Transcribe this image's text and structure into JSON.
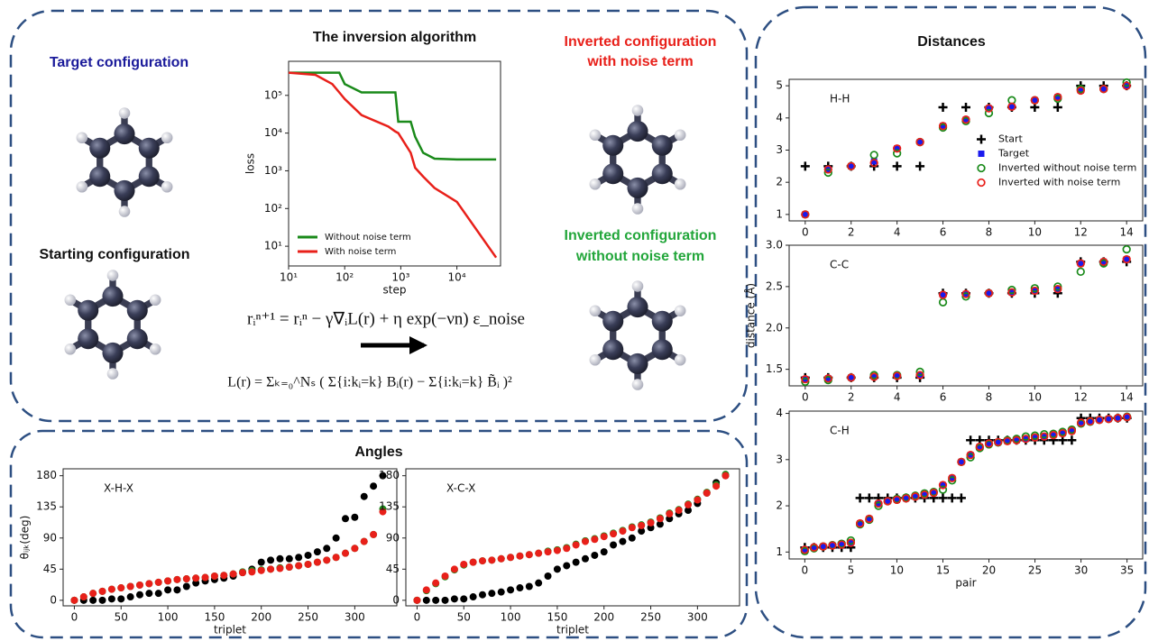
{
  "labels": {
    "target": "Target configuration",
    "starting": "Starting configuration",
    "inverted_noise": [
      "Inverted configuration",
      "with noise term"
    ],
    "inverted_no_noise": [
      "Inverted configuration",
      "without noise term"
    ],
    "equation_update": "rᵢⁿ⁺¹ = rᵢⁿ − γ∇ᵢL(r) + η exp(−νn) ε_noise",
    "equation_loss": "L(r) = Σₖ₌₀^Nₛ ( Σ{i:kᵢ=k} Bᵢ(r) − Σ{i:kᵢ=k} B̃ᵢ )²",
    "angles_title": "Angles",
    "distances_title": "Distances"
  },
  "chart_data": [
    {
      "type": "line",
      "title": "The inversion algorithm",
      "xlabel": "step",
      "ylabel": "loss",
      "xlog": true,
      "ylog": true,
      "x": [
        10,
        30,
        60,
        80,
        100,
        200,
        600,
        800,
        900,
        1500,
        1800,
        2500,
        4000,
        10000,
        50000
      ],
      "series": [
        {
          "name": "Without noise term",
          "color": "#1a8a1a",
          "values": [
            400000,
            400000,
            400000,
            400000,
            200000,
            120000,
            120000,
            120000,
            20000,
            20000,
            8000,
            3000,
            2100,
            2000,
            2000
          ]
        },
        {
          "name": "With noise term",
          "color": "#e8201a",
          "values": [
            400000,
            350000,
            200000,
            120000,
            80000,
            30000,
            15000,
            11000,
            10000,
            3000,
            1200,
            700,
            350,
            150,
            5
          ]
        }
      ],
      "xlim": [
        10,
        60000
      ],
      "ylim": [
        3,
        800000
      ],
      "xticks": [
        {
          "value": 10,
          "label": "10¹"
        },
        {
          "value": 100,
          "label": "10²"
        },
        {
          "value": 1000,
          "label": "10³"
        },
        {
          "value": 10000,
          "label": "10⁴"
        }
      ],
      "yticks": [
        {
          "value": 10,
          "label": "10¹"
        },
        {
          "value": 100,
          "label": "10²"
        },
        {
          "value": 1000,
          "label": "10³"
        },
        {
          "value": 10000,
          "label": "10⁴"
        },
        {
          "value": 100000,
          "label": "10⁵"
        }
      ],
      "legend": "lower left"
    },
    {
      "type": "scatter",
      "annotation": "X-H-X",
      "xlabel": "triplet",
      "ylabel": "θᵢⱼₖ(deg)",
      "x": [
        0,
        10,
        20,
        30,
        40,
        50,
        60,
        70,
        80,
        90,
        100,
        110,
        120,
        130,
        140,
        150,
        160,
        170,
        180,
        190,
        200,
        210,
        220,
        230,
        240,
        250,
        260,
        270,
        280,
        290,
        300,
        310,
        320,
        330
      ],
      "series": [
        {
          "color": "#000000",
          "marker": "dot",
          "values": [
            0,
            0,
            0,
            0,
            2,
            2,
            5,
            8,
            10,
            10,
            15,
            15,
            20,
            25,
            28,
            30,
            32,
            35,
            40,
            45,
            55,
            58,
            60,
            60,
            62,
            65,
            70,
            75,
            90,
            118,
            120,
            150,
            165,
            180
          ]
        },
        {
          "color": "#1a8a1a",
          "marker": "dot",
          "values": [
            0,
            5,
            10,
            13,
            16,
            18,
            20,
            22,
            24,
            26,
            28,
            30,
            31,
            32,
            33,
            35,
            36,
            38,
            41,
            43,
            44,
            45,
            47,
            48,
            50,
            52,
            55,
            58,
            62,
            68,
            75,
            85,
            95,
            132
          ]
        },
        {
          "color": "#e8201a",
          "marker": "dot",
          "values": [
            0,
            5,
            10,
            13,
            16,
            18,
            20,
            22,
            24,
            26,
            28,
            30,
            31,
            32,
            33,
            35,
            36,
            38,
            40,
            41,
            43,
            45,
            46,
            48,
            50,
            52,
            55,
            58,
            62,
            68,
            75,
            85,
            95,
            128
          ]
        }
      ],
      "xlim": [
        -12,
        345
      ],
      "ylim": [
        -8,
        190
      ],
      "xticks": [
        0,
        50,
        100,
        150,
        200,
        250,
        300
      ],
      "yticks": [
        0,
        45,
        90,
        135,
        180
      ]
    },
    {
      "type": "scatter",
      "annotation": "X-C-X",
      "xlabel": "triplet",
      "x": [
        0,
        10,
        20,
        30,
        40,
        50,
        60,
        70,
        80,
        90,
        100,
        110,
        120,
        130,
        140,
        150,
        160,
        170,
        180,
        190,
        200,
        210,
        220,
        230,
        240,
        250,
        260,
        270,
        280,
        290,
        300,
        310,
        320,
        330
      ],
      "series": [
        {
          "color": "#000000",
          "marker": "dot",
          "values": [
            0,
            0,
            0,
            0,
            2,
            2,
            5,
            8,
            10,
            12,
            15,
            18,
            20,
            25,
            35,
            45,
            50,
            55,
            60,
            65,
            70,
            80,
            85,
            90,
            100,
            105,
            110,
            118,
            125,
            130,
            140,
            155,
            170,
            180
          ]
        },
        {
          "color": "#1a8a1a",
          "marker": "dot",
          "values": [
            0,
            14,
            24,
            34,
            44,
            51,
            55,
            57,
            58,
            60,
            62,
            64,
            66,
            68,
            71,
            73,
            76,
            81,
            86,
            89,
            93,
            97,
            101,
            106,
            109,
            113,
            119,
            126,
            131,
            139,
            146,
            156,
            167,
            182
          ]
        },
        {
          "color": "#e8201a",
          "marker": "dot",
          "values": [
            0,
            15,
            25,
            35,
            45,
            52,
            55,
            57,
            58,
            60,
            62,
            64,
            66,
            68,
            70,
            72,
            75,
            80,
            85,
            88,
            92,
            96,
            100,
            105,
            108,
            112,
            118,
            125,
            130,
            138,
            145,
            155,
            165,
            180
          ]
        }
      ],
      "xlim": [
        -12,
        345
      ],
      "ylim": [
        -8,
        190
      ],
      "xticks": [
        0,
        50,
        100,
        150,
        200,
        250,
        300
      ],
      "yticks": [
        0,
        45,
        90,
        135,
        180
      ]
    },
    {
      "type": "scatter",
      "annotation": "H-H",
      "x": [
        0,
        1,
        2,
        3,
        4,
        5,
        6,
        7,
        8,
        9,
        10,
        11,
        12,
        13,
        14
      ],
      "series": [
        {
          "name": "Start",
          "color": "#000000",
          "marker": "plus",
          "values": [
            2.5,
            2.5,
            2.5,
            2.5,
            2.5,
            2.5,
            4.33,
            4.33,
            4.33,
            4.33,
            4.33,
            4.33,
            5.0,
            5.0,
            5.0
          ]
        },
        {
          "name": "Target",
          "color": "#1a1aee",
          "marker": "square",
          "values": [
            1.0,
            2.4,
            2.5,
            2.65,
            3.05,
            3.25,
            3.75,
            3.95,
            4.3,
            4.35,
            4.55,
            4.65,
            4.85,
            4.9,
            5.0
          ]
        },
        {
          "name": "Inverted without noise term",
          "color": "#1a8a1a",
          "marker": "ring",
          "values": [
            1.0,
            2.3,
            2.5,
            2.85,
            2.9,
            3.25,
            3.7,
            3.9,
            4.15,
            4.55,
            4.55,
            4.6,
            4.9,
            4.9,
            5.1
          ]
        },
        {
          "name": "Inverted with noise term",
          "color": "#e8201a",
          "marker": "ring",
          "values": [
            1.0,
            2.4,
            2.5,
            2.6,
            3.05,
            3.25,
            3.75,
            3.95,
            4.3,
            4.35,
            4.55,
            4.65,
            4.85,
            4.9,
            5.0
          ]
        }
      ],
      "xlim": [
        -0.7,
        14.7
      ],
      "ylim": [
        0.8,
        5.2
      ],
      "xticks": [
        0,
        2,
        4,
        6,
        8,
        10,
        12,
        14
      ],
      "yticks": [
        1,
        2,
        3,
        4,
        5
      ],
      "legend": "center right"
    },
    {
      "type": "scatter",
      "annotation": "C-C",
      "ylabel": "distance (Å)",
      "x": [
        0,
        1,
        2,
        3,
        4,
        5,
        6,
        7,
        8,
        9,
        10,
        11,
        12,
        13,
        14
      ],
      "series": [
        {
          "color": "#000000",
          "marker": "plus",
          "values": [
            1.4,
            1.4,
            1.4,
            1.4,
            1.4,
            1.4,
            2.42,
            2.42,
            2.42,
            2.42,
            2.42,
            2.42,
            2.8,
            2.8,
            2.8
          ]
        },
        {
          "color": "#1a1aee",
          "marker": "square",
          "values": [
            1.38,
            1.39,
            1.4,
            1.41,
            1.42,
            1.43,
            2.4,
            2.41,
            2.42,
            2.43,
            2.45,
            2.47,
            2.78,
            2.8,
            2.83
          ]
        },
        {
          "color": "#1a8a1a",
          "marker": "ring",
          "values": [
            1.35,
            1.37,
            1.4,
            1.43,
            1.43,
            1.47,
            2.31,
            2.38,
            2.42,
            2.46,
            2.48,
            2.5,
            2.68,
            2.78,
            2.95
          ]
        },
        {
          "color": "#e8201a",
          "marker": "ring",
          "values": [
            1.38,
            1.39,
            1.4,
            1.41,
            1.42,
            1.43,
            2.4,
            2.41,
            2.42,
            2.43,
            2.45,
            2.47,
            2.78,
            2.8,
            2.83
          ]
        }
      ],
      "xlim": [
        -0.7,
        14.7
      ],
      "ylim": [
        1.3,
        3.0
      ],
      "xticks": [
        0,
        2,
        4,
        6,
        8,
        10,
        12,
        14
      ],
      "yticks": [
        1.5,
        {
          "value": 2,
          "label": "2.0"
        },
        2.5,
        {
          "value": 3,
          "label": "3.0"
        }
      ]
    },
    {
      "type": "scatter",
      "annotation": "C-H",
      "xlabel": "pair",
      "x": [
        0,
        1,
        2,
        3,
        4,
        5,
        6,
        7,
        8,
        9,
        10,
        11,
        12,
        13,
        14,
        15,
        16,
        17,
        18,
        19,
        20,
        21,
        22,
        23,
        24,
        25,
        26,
        27,
        28,
        29,
        30,
        31,
        32,
        33,
        34,
        35
      ],
      "series": [
        {
          "color": "#000000",
          "marker": "plus",
          "values": [
            1.1,
            1.1,
            1.1,
            1.1,
            1.1,
            1.1,
            2.17,
            2.17,
            2.17,
            2.17,
            2.17,
            2.17,
            2.17,
            2.17,
            2.17,
            2.17,
            2.17,
            2.17,
            3.42,
            3.42,
            3.42,
            3.42,
            3.42,
            3.42,
            3.42,
            3.42,
            3.42,
            3.42,
            3.42,
            3.42,
            3.9,
            3.9,
            3.9,
            3.9,
            3.9,
            3.9
          ]
        },
        {
          "color": "#1a1aee",
          "marker": "square",
          "values": [
            1.05,
            1.1,
            1.12,
            1.14,
            1.16,
            1.2,
            1.62,
            1.72,
            2.05,
            2.1,
            2.13,
            2.16,
            2.2,
            2.24,
            2.28,
            2.45,
            2.6,
            2.95,
            3.1,
            3.28,
            3.35,
            3.38,
            3.4,
            3.42,
            3.45,
            3.48,
            3.5,
            3.53,
            3.57,
            3.62,
            3.8,
            3.83,
            3.86,
            3.88,
            3.9,
            3.92
          ]
        },
        {
          "color": "#1a8a1a",
          "marker": "ring",
          "values": [
            1.02,
            1.08,
            1.12,
            1.15,
            1.18,
            1.25,
            1.6,
            1.7,
            2.0,
            2.1,
            2.15,
            2.18,
            2.22,
            2.27,
            2.3,
            2.35,
            2.55,
            2.95,
            3.05,
            3.25,
            3.33,
            3.37,
            3.42,
            3.45,
            3.5,
            3.52,
            3.55,
            3.56,
            3.6,
            3.65,
            3.78,
            3.82,
            3.86,
            3.88,
            3.9,
            3.93
          ]
        },
        {
          "color": "#e8201a",
          "marker": "ring",
          "values": [
            1.05,
            1.1,
            1.12,
            1.14,
            1.16,
            1.2,
            1.62,
            1.72,
            2.05,
            2.1,
            2.13,
            2.16,
            2.2,
            2.24,
            2.28,
            2.45,
            2.6,
            2.95,
            3.1,
            3.28,
            3.35,
            3.38,
            3.4,
            3.42,
            3.45,
            3.48,
            3.5,
            3.53,
            3.57,
            3.62,
            3.8,
            3.83,
            3.86,
            3.88,
            3.9,
            3.92
          ]
        }
      ],
      "xlim": [
        -1.7,
        36.7
      ],
      "ylim": [
        0.85,
        4.05
      ],
      "xticks": [
        0,
        5,
        10,
        15,
        20,
        25,
        30,
        35
      ],
      "yticks": [
        1,
        2,
        3,
        4
      ]
    }
  ]
}
